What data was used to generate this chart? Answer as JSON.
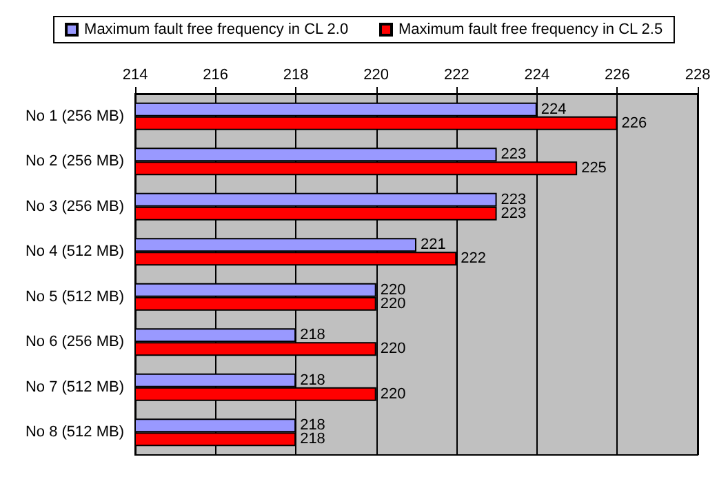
{
  "chart_data": {
    "type": "bar",
    "orientation": "horizontal",
    "categories": [
      "No 1 (256 MB)",
      "No 2 (256 MB)",
      "No 3 (256 MB)",
      "No 4 (512 MB)",
      "No 5 (512 MB)",
      "No 6 (256 MB)",
      "No 7 (512 MB)",
      "No 8 (512 MB)"
    ],
    "series": [
      {
        "name": "Maximum fault free frequency in CL 2.0",
        "color": "#9999ff",
        "values": [
          224,
          223,
          223,
          221,
          220,
          218,
          218,
          218
        ]
      },
      {
        "name": "Maximum fault free frequency in CL 2.5",
        "color": "#ff0000",
        "values": [
          226,
          225,
          223,
          222,
          220,
          220,
          220,
          218
        ]
      }
    ],
    "xlim": [
      214,
      228
    ],
    "xticks": [
      214,
      216,
      218,
      220,
      222,
      224,
      226,
      228
    ],
    "grid": "x",
    "legend": "top",
    "data_labels": true
  }
}
